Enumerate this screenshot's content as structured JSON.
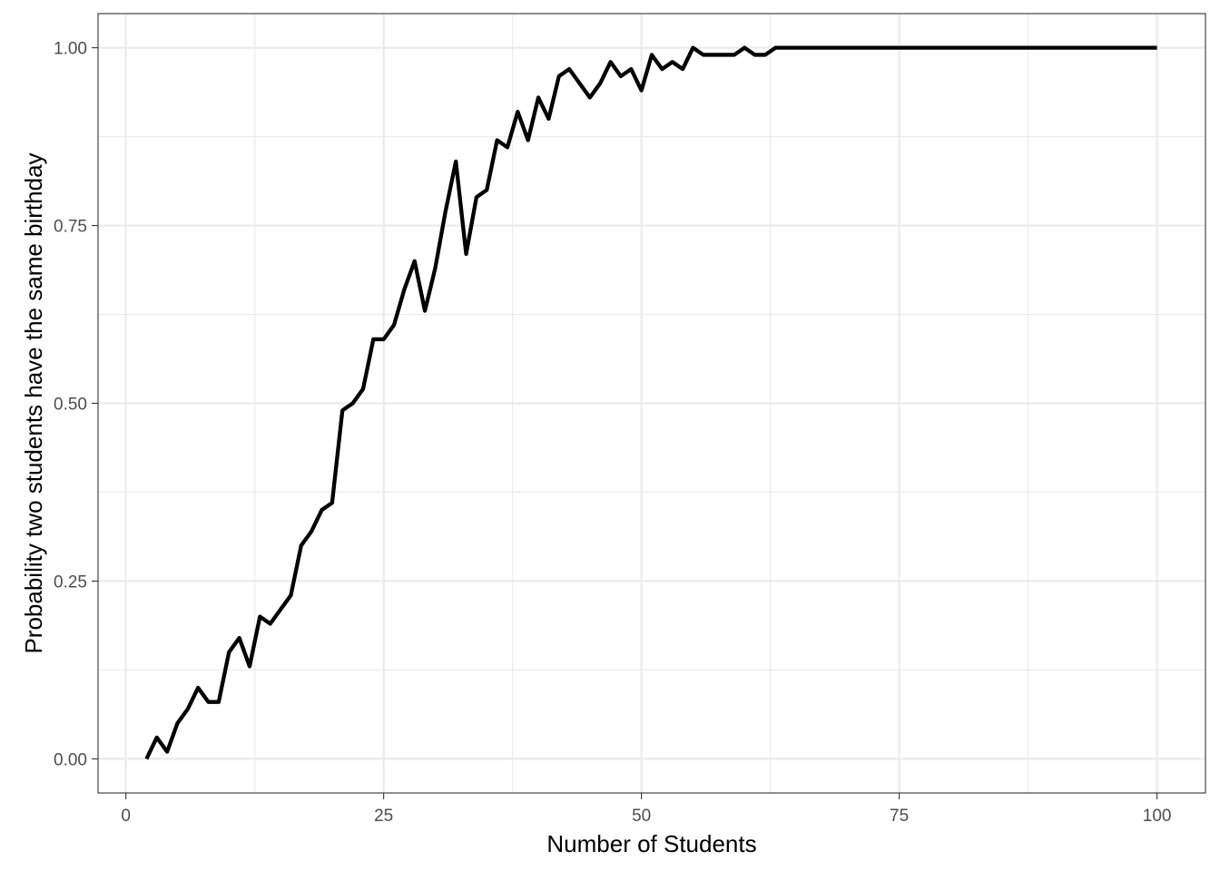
{
  "chart_data": {
    "type": "line",
    "xlabel": "Number of Students",
    "ylabel": "Probability two students have the same birthday",
    "xlim": [
      -2.7,
      104.7
    ],
    "ylim": [
      -0.048,
      1.048
    ],
    "x_ticks": [
      0,
      25,
      50,
      75,
      100
    ],
    "x_tick_labels": [
      "0",
      "25",
      "50",
      "75",
      "100"
    ],
    "y_ticks": [
      0,
      0.25,
      0.5,
      0.75,
      1.0
    ],
    "y_tick_labels": [
      "0.00",
      "0.25",
      "0.50",
      "0.75",
      "1.00"
    ],
    "x_minor": [
      12.5,
      37.5,
      62.5,
      87.5
    ],
    "y_minor": [
      0.125,
      0.375,
      0.625,
      0.875
    ],
    "grid": true,
    "legend": "none",
    "line_color": "#000000",
    "grid_color": "#ebebeb",
    "panel_border_color": "#333333",
    "series": [
      {
        "x": [
          2,
          3,
          4,
          5,
          6,
          7,
          8,
          9,
          10,
          11,
          12,
          13,
          14,
          15,
          16,
          17,
          18,
          19,
          20,
          21,
          22,
          23,
          24,
          25,
          26,
          27,
          28,
          29,
          30,
          31,
          32,
          33,
          34,
          35,
          36,
          37,
          38,
          39,
          40,
          41,
          42,
          43,
          44,
          45,
          46,
          47,
          48,
          49,
          50,
          51,
          52,
          53,
          54,
          55,
          56,
          57,
          58,
          59,
          60,
          61,
          62,
          63,
          64,
          65,
          66,
          67,
          68,
          69,
          70,
          71,
          72,
          73,
          74,
          75,
          76,
          77,
          78,
          79,
          80,
          81,
          82,
          83,
          84,
          85,
          86,
          87,
          88,
          89,
          90,
          91,
          92,
          93,
          94,
          95,
          96,
          97,
          98,
          99,
          100
        ],
        "values": [
          0.0,
          0.03,
          0.01,
          0.05,
          0.07,
          0.1,
          0.08,
          0.08,
          0.15,
          0.17,
          0.13,
          0.2,
          0.19,
          0.21,
          0.23,
          0.3,
          0.32,
          0.35,
          0.36,
          0.49,
          0.5,
          0.52,
          0.59,
          0.59,
          0.61,
          0.66,
          0.7,
          0.63,
          0.69,
          0.77,
          0.84,
          0.71,
          0.79,
          0.8,
          0.87,
          0.86,
          0.91,
          0.87,
          0.93,
          0.9,
          0.96,
          0.97,
          0.95,
          0.93,
          0.95,
          0.98,
          0.96,
          0.97,
          0.94,
          0.99,
          0.97,
          0.98,
          0.97,
          1.0,
          0.99,
          0.99,
          0.99,
          0.99,
          1.0,
          0.99,
          0.99,
          1.0,
          1.0,
          1.0,
          1.0,
          1.0,
          1.0,
          1.0,
          1.0,
          1.0,
          1.0,
          1.0,
          1.0,
          1.0,
          1.0,
          1.0,
          1.0,
          1.0,
          1.0,
          1.0,
          1.0,
          1.0,
          1.0,
          1.0,
          1.0,
          1.0,
          1.0,
          1.0,
          1.0,
          1.0,
          1.0,
          1.0,
          1.0,
          1.0,
          1.0,
          1.0,
          1.0,
          1.0,
          1.0
        ]
      }
    ]
  }
}
